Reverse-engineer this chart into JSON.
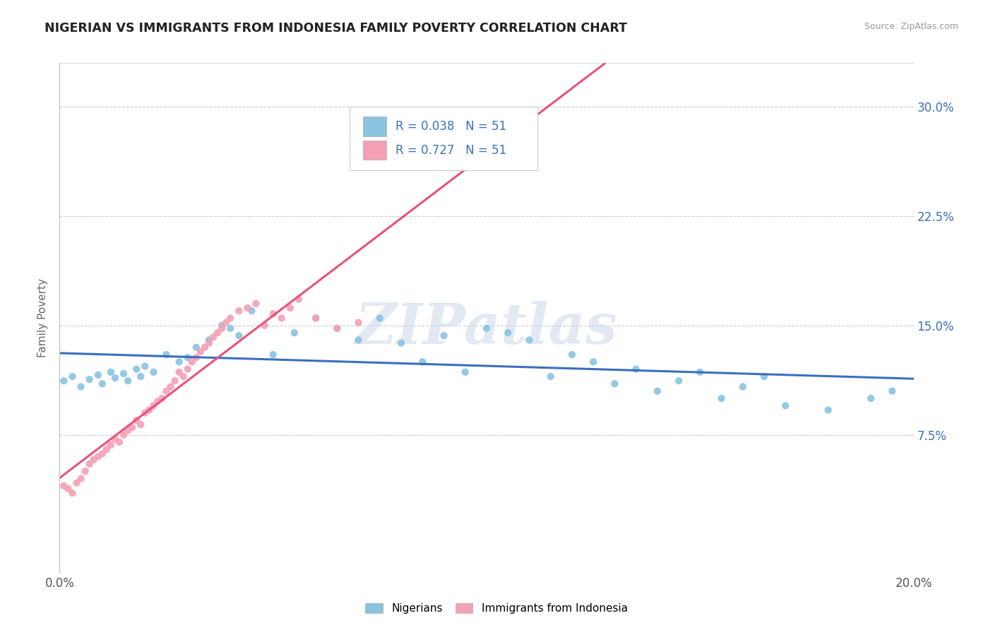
{
  "title": "NIGERIAN VS IMMIGRANTS FROM INDONESIA FAMILY POVERTY CORRELATION CHART",
  "source": "Source: ZipAtlas.com",
  "xlabel_nigerians": "Nigerians",
  "xlabel_indonesia": "Immigrants from Indonesia",
  "ylabel": "Family Poverty",
  "xlim": [
    0.0,
    0.2
  ],
  "ylim": [
    -0.02,
    0.33
  ],
  "xticks": [
    0.0,
    0.05,
    0.1,
    0.15,
    0.2
  ],
  "xtick_labels": [
    "0.0%",
    "",
    "",
    "",
    "20.0%"
  ],
  "yticks": [
    0.075,
    0.15,
    0.225,
    0.3
  ],
  "ytick_labels": [
    "7.5%",
    "15.0%",
    "22.5%",
    "30.0%"
  ],
  "blue_color": "#89c4e1",
  "pink_color": "#f4a0b5",
  "blue_line_color": "#3a6fbf",
  "pink_line_color": "#e8527a",
  "R_blue": 0.038,
  "R_pink": 0.727,
  "N_blue": 51,
  "N_pink": 51,
  "watermark": "ZIPatlas",
  "background_color": "#ffffff",
  "grid_color": "#cccccc",
  "blue_scatter_x": [
    0.001,
    0.003,
    0.005,
    0.007,
    0.009,
    0.01,
    0.012,
    0.013,
    0.015,
    0.016,
    0.018,
    0.019,
    0.02,
    0.022,
    0.025,
    0.028,
    0.03,
    0.032,
    0.035,
    0.038,
    0.04,
    0.042,
    0.045,
    0.05,
    0.055,
    0.06,
    0.065,
    0.07,
    0.075,
    0.08,
    0.085,
    0.09,
    0.095,
    0.1,
    0.105,
    0.11,
    0.115,
    0.12,
    0.125,
    0.13,
    0.135,
    0.14,
    0.145,
    0.15,
    0.155,
    0.16,
    0.165,
    0.17,
    0.18,
    0.19,
    0.195
  ],
  "blue_scatter_y": [
    0.112,
    0.115,
    0.108,
    0.113,
    0.116,
    0.11,
    0.118,
    0.114,
    0.117,
    0.112,
    0.12,
    0.115,
    0.122,
    0.118,
    0.13,
    0.125,
    0.128,
    0.135,
    0.14,
    0.15,
    0.148,
    0.143,
    0.16,
    0.13,
    0.145,
    0.155,
    0.148,
    0.14,
    0.155,
    0.138,
    0.125,
    0.143,
    0.118,
    0.148,
    0.145,
    0.14,
    0.115,
    0.13,
    0.125,
    0.11,
    0.12,
    0.105,
    0.112,
    0.118,
    0.1,
    0.108,
    0.115,
    0.095,
    0.092,
    0.1,
    0.105
  ],
  "pink_scatter_x": [
    0.001,
    0.002,
    0.003,
    0.004,
    0.005,
    0.006,
    0.007,
    0.008,
    0.009,
    0.01,
    0.011,
    0.012,
    0.013,
    0.014,
    0.015,
    0.016,
    0.017,
    0.018,
    0.019,
    0.02,
    0.021,
    0.022,
    0.023,
    0.024,
    0.025,
    0.026,
    0.027,
    0.028,
    0.029,
    0.03,
    0.031,
    0.032,
    0.033,
    0.034,
    0.035,
    0.036,
    0.037,
    0.038,
    0.039,
    0.04,
    0.042,
    0.044,
    0.046,
    0.048,
    0.05,
    0.052,
    0.054,
    0.056,
    0.06,
    0.065,
    0.07
  ],
  "pink_scatter_y": [
    0.04,
    0.038,
    0.035,
    0.042,
    0.045,
    0.05,
    0.055,
    0.058,
    0.06,
    0.062,
    0.065,
    0.068,
    0.072,
    0.07,
    0.075,
    0.078,
    0.08,
    0.085,
    0.082,
    0.09,
    0.092,
    0.095,
    0.098,
    0.1,
    0.105,
    0.108,
    0.112,
    0.118,
    0.115,
    0.12,
    0.125,
    0.128,
    0.132,
    0.135,
    0.138,
    0.142,
    0.145,
    0.148,
    0.152,
    0.155,
    0.16,
    0.162,
    0.165,
    0.15,
    0.158,
    0.155,
    0.162,
    0.168,
    0.155,
    0.148,
    0.152
  ]
}
